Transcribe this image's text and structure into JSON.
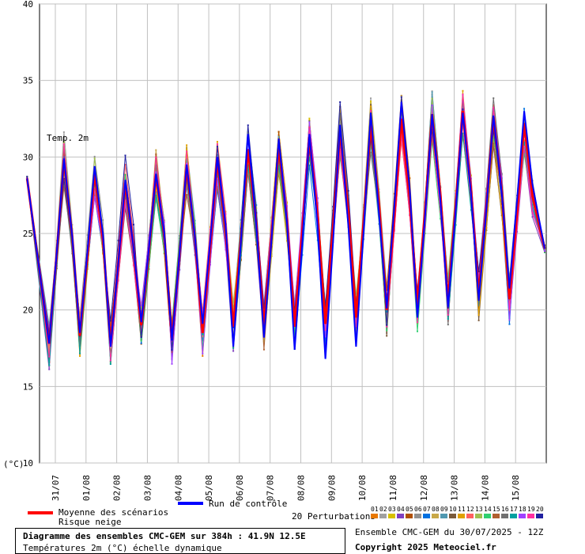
{
  "chart_data": {
    "type": "line",
    "ylim": [
      10,
      40
    ],
    "yticks": [
      "10",
      "15",
      "20",
      "25",
      "30",
      "35",
      "40"
    ],
    "yunit": "(°C)",
    "series_label": "Temp. 2m",
    "categories": [
      "31/07",
      "01/08",
      "02/08",
      "03/08",
      "04/08",
      "05/08",
      "06/08",
      "07/08",
      "08/08",
      "09/08",
      "10/08",
      "11/08",
      "12/08",
      "13/08",
      "14/08",
      "15/08"
    ],
    "mean_max": [
      29.8,
      29.0,
      28.3,
      28.8,
      29.3,
      29.8,
      30.5,
      30.7,
      31.3,
      31.7,
      32.2,
      32.5,
      32.8,
      33.0,
      32.6,
      32.2
    ],
    "mean_min": [
      17.8,
      18.3,
      17.8,
      19.0,
      18.1,
      18.5,
      18.9,
      19.0,
      18.9,
      19.1,
      19.5,
      20.0,
      20.3,
      20.6,
      21.0,
      20.7
    ],
    "control_max": [
      29.9,
      29.4,
      28.5,
      28.9,
      29.5,
      30.0,
      31.5,
      31.2,
      31.5,
      32.1,
      32.9,
      33.6,
      32.8,
      32.9,
      32.7,
      33.0
    ],
    "control_min": [
      17.8,
      18.5,
      17.6,
      19.2,
      18.0,
      19.1,
      17.6,
      18.2,
      17.4,
      16.8,
      17.6,
      20.1,
      19.5,
      20.2,
      20.6,
      21.4
    ],
    "perturbation_colors": [
      "#e87800",
      "#a0a0a0",
      "#d8c000",
      "#8040c0",
      "#b05000",
      "#909090",
      "#0070e0",
      "#c8a848",
      "#5098b0",
      "#7a5a3a",
      "#e0a000",
      "#ff6060",
      "#a0c050",
      "#30d070",
      "#b06030",
      "#707070",
      "#00a0a0",
      "#a040ff",
      "#ff30a0",
      "#2020a0"
    ]
  },
  "legend": {
    "mean": "Moyenne des scénarios",
    "snow": "Risque neige",
    "control": "Run de contrôle",
    "perturbations": "20 Perturbations",
    "numbers": [
      "01",
      "02",
      "03",
      "04",
      "05",
      "06",
      "07",
      "08",
      "09",
      "10",
      "11",
      "12",
      "13",
      "14",
      "15",
      "16",
      "17",
      "18",
      "19",
      "20"
    ]
  },
  "footer": {
    "title": "Diagramme des ensembles CMC-GEM sur 384h : 41.9N 12.5E",
    "subtitle": "Températures 2m (°C) échelle dynamique",
    "run": "Ensemble CMC-GEM du 30/07/2025 - 12Z",
    "copyright": "Copyright 2025 Meteociel.fr"
  },
  "colors": {
    "mean": "#ff0000",
    "control": "#0000ff"
  }
}
